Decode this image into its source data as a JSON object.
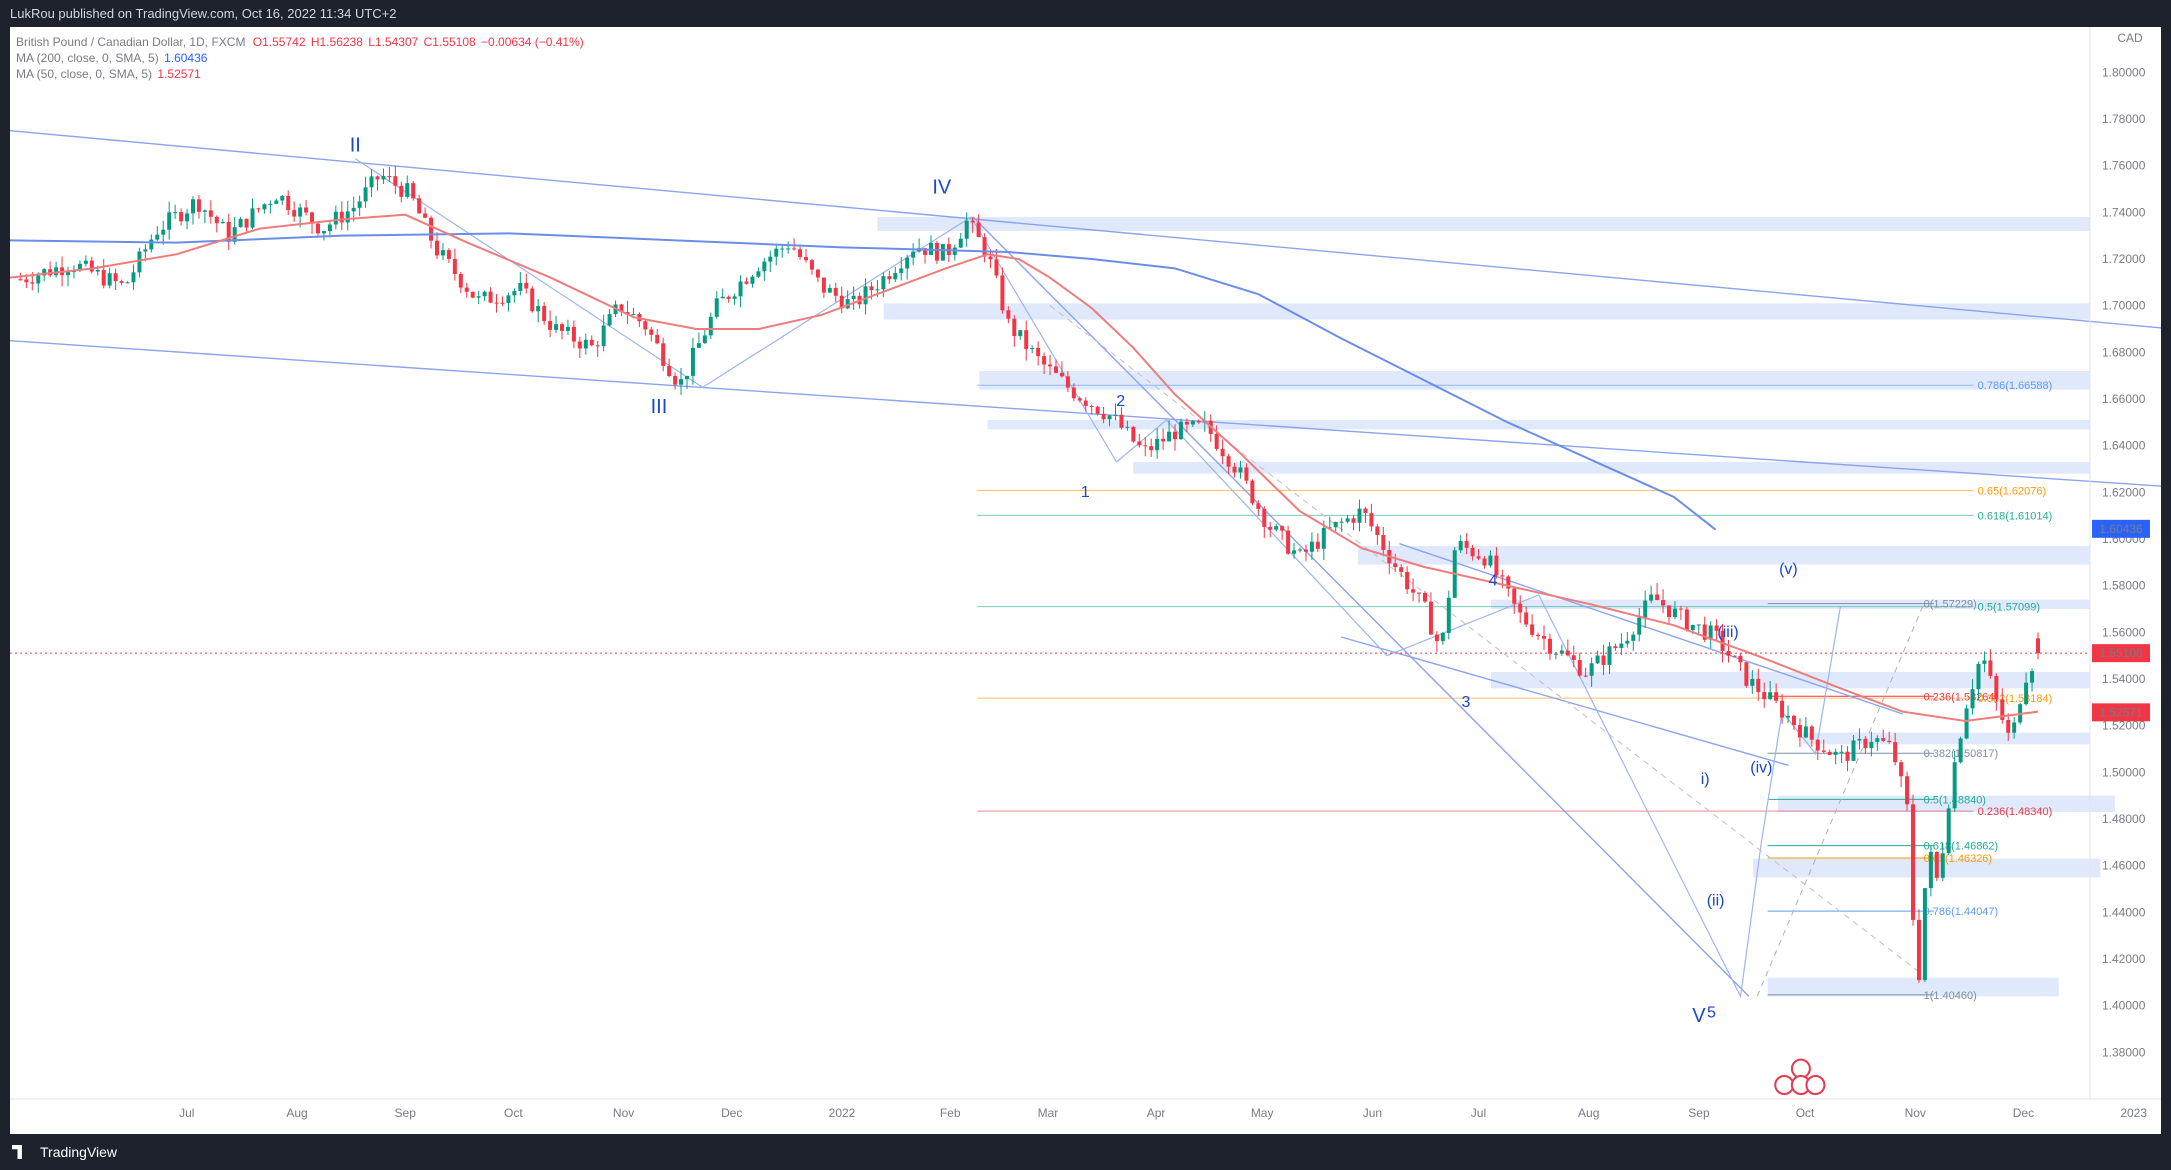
{
  "header": {
    "published_by": "LukRou published on TradingView.com, Oct 16, 2022 11:34 UTC+2"
  },
  "legend": {
    "title": "British Pound / Canadian Dollar, 1D, FXCM",
    "ohlc": {
      "o": "O1.55742",
      "h": "H1.56238",
      "l": "L1.54307",
      "c": "C1.55108",
      "change": "−0.00634 (−0.41%)"
    },
    "ma200": {
      "label": "MA (200, close, 0, SMA, 5)",
      "value": "1.60436"
    },
    "ma50": {
      "label": "MA (50, close, 0, SMA, 5)",
      "value": "1.52571"
    }
  },
  "colors": {
    "background": "#ffffff",
    "frame": "#1e222d",
    "up": "#089981",
    "down": "#f23645",
    "ma200": "#6a8ee8",
    "ma50": "#ef7c7c",
    "wave_labels": "#1848cc",
    "zones": "#dbe5fb"
  },
  "footer": {
    "brand": "TradingView"
  },
  "icons": [
    "tradingview-logo-icon",
    "uk-flag-event-icon",
    "canada-flag-event-icon"
  ],
  "chart_data": {
    "type": "candlestick",
    "currency": "CAD",
    "ylim": [
      1.36,
      1.81
    ],
    "y_ticks": [
      "1.80000",
      "1.78000",
      "1.76000",
      "1.74000",
      "1.72000",
      "1.70000",
      "1.68000",
      "1.66000",
      "1.64000",
      "1.62000",
      "1.60000",
      "1.58000",
      "1.56000",
      "1.54000",
      "1.52000",
      "1.50000",
      "1.48000",
      "1.46000",
      "1.44000",
      "1.42000",
      "1.40000",
      "1.38000"
    ],
    "x_ticks": [
      {
        "label": "Jul",
        "t": 0.085
      },
      {
        "label": "Aug",
        "t": 0.138
      },
      {
        "label": "Sep",
        "t": 0.19
      },
      {
        "label": "Oct",
        "t": 0.242
      },
      {
        "label": "Nov",
        "t": 0.295
      },
      {
        "label": "Dec",
        "t": 0.347
      },
      {
        "label": "2022",
        "t": 0.4
      },
      {
        "label": "Feb",
        "t": 0.452
      },
      {
        "label": "Mar",
        "t": 0.499
      },
      {
        "label": "Apr",
        "t": 0.551
      },
      {
        "label": "May",
        "t": 0.602
      },
      {
        "label": "Jun",
        "t": 0.655
      },
      {
        "label": "Jul",
        "t": 0.706
      },
      {
        "label": "Aug",
        "t": 0.759
      },
      {
        "label": "Sep",
        "t": 0.812
      },
      {
        "label": "Oct",
        "t": 0.863
      },
      {
        "label": "Nov",
        "t": 0.916
      },
      {
        "label": "Dec",
        "t": 0.968
      },
      {
        "label": "2023",
        "t": 1.021
      }
    ],
    "price_path": [
      [
        0.0,
        1.71
      ],
      [
        0.03,
        1.718
      ],
      [
        0.055,
        1.708
      ],
      [
        0.07,
        1.732
      ],
      [
        0.09,
        1.745
      ],
      [
        0.105,
        1.73
      ],
      [
        0.128,
        1.748
      ],
      [
        0.15,
        1.733
      ],
      [
        0.165,
        1.742
      ],
      [
        0.178,
        1.756
      ],
      [
        0.192,
        1.748
      ],
      [
        0.205,
        1.724
      ],
      [
        0.225,
        1.702
      ],
      [
        0.245,
        1.707
      ],
      [
        0.262,
        1.69
      ],
      [
        0.28,
        1.682
      ],
      [
        0.293,
        1.7
      ],
      [
        0.305,
        1.692
      ],
      [
        0.322,
        1.666
      ],
      [
        0.34,
        1.7
      ],
      [
        0.36,
        1.718
      ],
      [
        0.375,
        1.727
      ],
      [
        0.39,
        1.708
      ],
      [
        0.405,
        1.7
      ],
      [
        0.42,
        1.712
      ],
      [
        0.435,
        1.726
      ],
      [
        0.45,
        1.722
      ],
      [
        0.46,
        1.736
      ],
      [
        0.47,
        1.722
      ],
      [
        0.48,
        1.692
      ],
      [
        0.495,
        1.676
      ],
      [
        0.51,
        1.664
      ],
      [
        0.53,
        1.652
      ],
      [
        0.545,
        1.637
      ],
      [
        0.56,
        1.646
      ],
      [
        0.575,
        1.648
      ],
      [
        0.59,
        1.63
      ],
      [
        0.605,
        1.606
      ],
      [
        0.62,
        1.592
      ],
      [
        0.635,
        1.604
      ],
      [
        0.65,
        1.612
      ],
      [
        0.665,
        1.59
      ],
      [
        0.68,
        1.57
      ],
      [
        0.688,
        1.552
      ],
      [
        0.695,
        1.598
      ],
      [
        0.71,
        1.592
      ],
      [
        0.725,
        1.568
      ],
      [
        0.74,
        1.555
      ],
      [
        0.758,
        1.543
      ],
      [
        0.775,
        1.556
      ],
      [
        0.79,
        1.575
      ],
      [
        0.805,
        1.565
      ],
      [
        0.82,
        1.558
      ],
      [
        0.835,
        1.54
      ],
      [
        0.85,
        1.528
      ],
      [
        0.865,
        1.515
      ],
      [
        0.88,
        1.506
      ],
      [
        0.895,
        1.515
      ],
      [
        0.905,
        1.51
      ],
      [
        0.912,
        1.485
      ],
      [
        0.917,
        1.404
      ],
      [
        0.922,
        1.468
      ],
      [
        0.927,
        1.452
      ],
      [
        0.933,
        1.495
      ],
      [
        0.94,
        1.528
      ],
      [
        0.948,
        1.551
      ],
      [
        0.955,
        1.53
      ],
      [
        0.962,
        1.512
      ],
      [
        0.968,
        1.54
      ],
      [
        0.975,
        1.551
      ]
    ],
    "ma200_path": [
      [
        0.0,
        1.728
      ],
      [
        0.08,
        1.727
      ],
      [
        0.16,
        1.73
      ],
      [
        0.24,
        1.731
      ],
      [
        0.32,
        1.728
      ],
      [
        0.4,
        1.725
      ],
      [
        0.48,
        1.723
      ],
      [
        0.52,
        1.72
      ],
      [
        0.56,
        1.716
      ],
      [
        0.6,
        1.705
      ],
      [
        0.64,
        1.686
      ],
      [
        0.68,
        1.668
      ],
      [
        0.72,
        1.65
      ],
      [
        0.76,
        1.634
      ],
      [
        0.8,
        1.618
      ],
      [
        0.82,
        1.604
      ]
    ],
    "ma50_path": [
      [
        0.0,
        1.712
      ],
      [
        0.04,
        1.716
      ],
      [
        0.08,
        1.722
      ],
      [
        0.12,
        1.733
      ],
      [
        0.16,
        1.737
      ],
      [
        0.19,
        1.739
      ],
      [
        0.22,
        1.727
      ],
      [
        0.26,
        1.712
      ],
      [
        0.3,
        1.695
      ],
      [
        0.33,
        1.69
      ],
      [
        0.36,
        1.69
      ],
      [
        0.39,
        1.696
      ],
      [
        0.42,
        1.706
      ],
      [
        0.45,
        1.716
      ],
      [
        0.47,
        1.722
      ],
      [
        0.485,
        1.72
      ],
      [
        0.5,
        1.712
      ],
      [
        0.52,
        1.699
      ],
      [
        0.54,
        1.682
      ],
      [
        0.56,
        1.662
      ],
      [
        0.59,
        1.638
      ],
      [
        0.62,
        1.612
      ],
      [
        0.65,
        1.596
      ],
      [
        0.68,
        1.588
      ],
      [
        0.72,
        1.58
      ],
      [
        0.76,
        1.572
      ],
      [
        0.8,
        1.563
      ],
      [
        0.84,
        1.55
      ],
      [
        0.88,
        1.536
      ],
      [
        0.91,
        1.526
      ],
      [
        0.94,
        1.522
      ],
      [
        0.975,
        1.526
      ]
    ],
    "current_price": "1.55108",
    "wave_labels": [
      {
        "label": "II",
        "t": 0.166,
        "y": 1.766
      },
      {
        "label": "III",
        "t": 0.312,
        "y": 1.654
      },
      {
        "label": "IV",
        "t": 0.448,
        "y": 1.748
      },
      {
        "label": "1",
        "t": 0.517,
        "y": 1.618
      },
      {
        "label": "2",
        "t": 0.534,
        "y": 1.657
      },
      {
        "label": "3",
        "t": 0.7,
        "y": 1.528
      },
      {
        "label": "4",
        "t": 0.713,
        "y": 1.58
      },
      {
        "label": "5",
        "t": 0.818,
        "y": 1.395
      },
      {
        "label": "V",
        "t": 0.812,
        "y": 1.393
      },
      {
        "label": "(iii)",
        "t": 0.826,
        "y": 1.558
      },
      {
        "label": "(v)",
        "t": 0.855,
        "y": 1.585
      },
      {
        "label": "i)",
        "t": 0.815,
        "y": 1.495
      },
      {
        "label": "(ii)",
        "t": 0.82,
        "y": 1.443
      },
      {
        "label": "(iv)",
        "t": 0.842,
        "y": 1.5
      }
    ],
    "fib_down": [
      {
        "label": "0(1.57229)",
        "y": 1.5723,
        "color": "#7f8fa6"
      },
      {
        "label": "0.236(1.53264)",
        "y": 1.5326,
        "color": "#f23645"
      },
      {
        "label": "0.382(1.50817)",
        "y": 1.5082,
        "color": "#7f8fa6"
      },
      {
        "label": "0.5(1.48840)",
        "y": 1.4884,
        "color": "#22ab94"
      },
      {
        "label": "0.618(1.46862)",
        "y": 1.4686,
        "color": "#22ab94"
      },
      {
        "label": "0.65(1.46326)",
        "y": 1.4633,
        "color": "#ff9800"
      },
      {
        "label": "0.786(1.44047)",
        "y": 1.4405,
        "color": "#5b9cf6"
      },
      {
        "label": "1(1.40460)",
        "y": 1.4046,
        "color": "#7f8fa6"
      }
    ],
    "fib_up": [
      {
        "label": "0.786(1.66588)",
        "y": 1.6659,
        "color": "#5b9cf6"
      },
      {
        "label": "0.65(1.62076)",
        "y": 1.6208,
        "color": "#ff9800"
      },
      {
        "label": "0.618(1.61014)",
        "y": 1.6101,
        "color": "#22ab94"
      },
      {
        "label": "0.5(1.57099)",
        "y": 1.571,
        "color": "#22ab94"
      },
      {
        "label": "0.236(1.48340)",
        "y": 1.4834,
        "color": "#f23645"
      },
      {
        "label": "0.382(1.53184)",
        "y": 1.5318,
        "color": "#ff9800"
      }
    ]
  }
}
